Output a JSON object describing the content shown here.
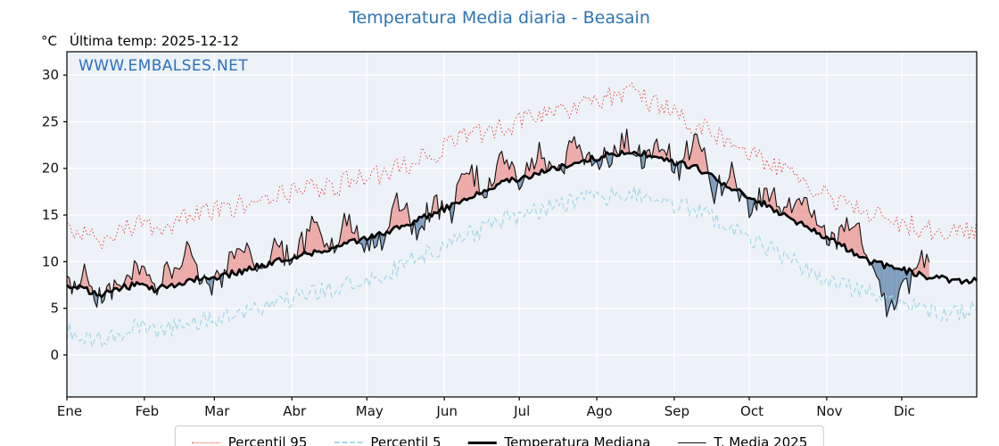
{
  "title": "Temperatura Media diaria - Beasain",
  "header": {
    "unit": "°C",
    "last_temp": "Última temp: 2025-12-12"
  },
  "watermark": "WWW.EMBALSES.NET",
  "colors": {
    "title": "#2e74b5",
    "watermark": "#2c6fbd",
    "plot_bg": "#edf2f8",
    "grid": "#ffffff",
    "axis": "#000000"
  },
  "chart_data": {
    "type": "line",
    "title": "Temperatura Media diaria - Beasain",
    "ylabel": "°C",
    "ylim": [
      -4.5,
      32.5
    ],
    "yticks": [
      0,
      5,
      10,
      15,
      20,
      25,
      30
    ],
    "grid": true,
    "legend_position": "bottom",
    "months": [
      "Ene",
      "Feb",
      "Mar",
      "Abr",
      "May",
      "Jun",
      "Jul",
      "Ago",
      "Sep",
      "Oct",
      "Nov",
      "Dic"
    ],
    "month_start_days": [
      1,
      32,
      60,
      91,
      121,
      152,
      182,
      213,
      244,
      274,
      305,
      335
    ],
    "days_in_year": 365,
    "x_unit": "day_of_year",
    "fill_above_color": "rgba(235,100,90,0.5)",
    "fill_below_color": "rgba(90,130,170,0.75)",
    "series": [
      {
        "name": "Percentil 95",
        "style": "dotted",
        "color": "#e8433f",
        "width": 1,
        "step_days": 7,
        "last_day": 365,
        "noise": 1.2,
        "values": [
          13.5,
          13.0,
          12.5,
          13.5,
          14.0,
          13.5,
          14.0,
          15.0,
          15.5,
          15.5,
          16.0,
          16.5,
          17.0,
          17.5,
          18.0,
          18.0,
          18.5,
          19.0,
          19.5,
          20.0,
          21.0,
          21.5,
          22.5,
          23.5,
          24.0,
          24.5,
          25.0,
          25.5,
          26.0,
          26.5,
          27.0,
          27.5,
          28.5,
          27.5,
          26.5,
          25.5,
          24.5,
          23.5,
          22.5,
          21.5,
          20.5,
          19.5,
          18.5,
          17.5,
          16.5,
          15.5,
          15.0,
          14.5,
          14.0,
          13.5,
          13.0,
          13.0,
          13.5
        ]
      },
      {
        "name": "Percentil 5",
        "style": "dashed",
        "color": "#a8d7e8",
        "width": 1.3,
        "step_days": 7,
        "last_day": 365,
        "noise": 1.0,
        "values": [
          2.5,
          2.0,
          1.5,
          2.5,
          3.0,
          2.5,
          3.0,
          3.5,
          4.0,
          4.0,
          4.5,
          5.0,
          5.5,
          6.0,
          6.5,
          7.0,
          7.5,
          8.0,
          8.5,
          9.5,
          10.5,
          11.0,
          12.0,
          13.0,
          13.5,
          14.5,
          15.0,
          15.5,
          16.0,
          16.5,
          17.0,
          17.0,
          17.5,
          17.0,
          16.5,
          16.0,
          15.5,
          14.5,
          13.5,
          12.5,
          11.5,
          10.5,
          9.5,
          8.5,
          8.0,
          7.0,
          6.5,
          6.0,
          5.5,
          5.0,
          4.5,
          4.5,
          5.0
        ]
      },
      {
        "name": "Temperatura Mediana",
        "style": "solid",
        "color": "#000000",
        "width": 2.6,
        "step_days": 7,
        "last_day": 365,
        "noise": 0.35,
        "values": [
          7.5,
          7.0,
          6.5,
          7.2,
          7.5,
          7.0,
          7.5,
          8.0,
          8.2,
          8.5,
          9.0,
          9.5,
          10.0,
          10.5,
          11.0,
          11.5,
          12.0,
          12.5,
          13.0,
          13.8,
          14.5,
          15.2,
          16.0,
          17.0,
          17.8,
          18.5,
          19.0,
          19.5,
          20.0,
          20.5,
          21.0,
          21.5,
          21.8,
          21.5,
          21.0,
          20.5,
          20.0,
          19.0,
          18.0,
          17.0,
          16.0,
          15.0,
          14.0,
          13.0,
          12.0,
          11.0,
          10.0,
          9.5,
          9.0,
          8.5,
          8.2,
          8.0,
          8.0
        ]
      },
      {
        "name": "T. Media 2025",
        "style": "solid",
        "color": "#111111",
        "width": 1.1,
        "step_days": 7,
        "last_day": 346,
        "noise": 1.5,
        "values": [
          7.0,
          9.0,
          5.5,
          8.0,
          9.5,
          6.5,
          9.5,
          11.0,
          7.5,
          8.5,
          12.5,
          9.0,
          11.5,
          10.0,
          14.0,
          11.0,
          14.5,
          12.0,
          12.5,
          16.5,
          13.5,
          16.0,
          15.5,
          20.5,
          17.0,
          21.5,
          18.5,
          22.0,
          19.5,
          22.5,
          20.5,
          21.0,
          23.5,
          20.5,
          22.5,
          19.5,
          24.5,
          17.5,
          19.5,
          15.5,
          18.0,
          15.0,
          16.5,
          13.5,
          12.5,
          14.5,
          10.0,
          4.0,
          7.5,
          10.5
        ]
      }
    ]
  },
  "legend": {
    "items": [
      {
        "label": "Percentil 95"
      },
      {
        "label": "Percentil 5"
      },
      {
        "label": "Temperatura Mediana"
      },
      {
        "label": "T. Media 2025"
      }
    ]
  }
}
